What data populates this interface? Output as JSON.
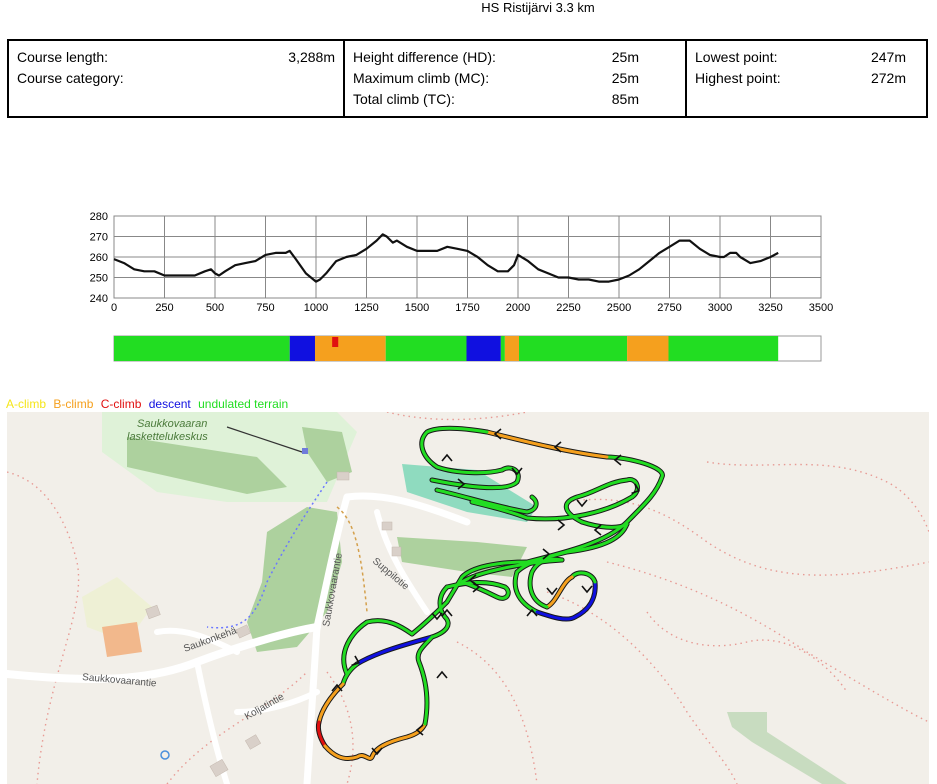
{
  "title": "HS Ristijärvi 3.3 km",
  "stats": {
    "course_length_label": "Course length:",
    "course_length_value": "3,288m",
    "course_category_label": "Course category:",
    "course_category_value": "",
    "height_diff_label": "Height difference (HD):",
    "height_diff_value": "25m",
    "max_climb_label": "Maximum climb (MC):",
    "max_climb_value": "25m",
    "total_climb_label": "Total climb (TC):",
    "total_climb_value": "85m",
    "lowest_label": "Lowest point:",
    "lowest_value": "247m",
    "highest_label": "Highest point:",
    "highest_value": "272m"
  },
  "legend": {
    "a_climb": "A-climb",
    "b_climb": "B-climb",
    "c_climb": "C-climb",
    "descent": "descent",
    "undulated": "undulated terrain"
  },
  "colors": {
    "a_climb": "#f5e61a",
    "b_climb": "#f5a01e",
    "c_climb": "#e01010",
    "descent": "#1010e0",
    "undulated": "#22dd22"
  },
  "chart_data": {
    "type": "line",
    "xlim": [
      0,
      3500
    ],
    "ylim": [
      240,
      280
    ],
    "x_ticks": [
      "0",
      "250",
      "500",
      "750",
      "1000",
      "1250",
      "1500",
      "1750",
      "2000",
      "2250",
      "2500",
      "2750",
      "3000",
      "3250",
      "3500"
    ],
    "y_ticks": [
      "240",
      "250",
      "260",
      "270",
      "280"
    ],
    "series": [
      {
        "x": [
          0,
          50,
          100,
          150,
          200,
          250,
          300,
          350,
          400,
          450,
          480,
          500,
          520,
          550,
          600,
          650,
          700,
          750,
          800,
          850,
          870,
          900,
          950,
          1000,
          1020,
          1050,
          1100,
          1150,
          1200,
          1250,
          1300,
          1330,
          1350,
          1380,
          1400,
          1450,
          1500,
          1550,
          1600,
          1650,
          1700,
          1750,
          1800,
          1850,
          1900,
          1950,
          1980,
          2000,
          2050,
          2100,
          2150,
          2200,
          2250,
          2300,
          2350,
          2400,
          2450,
          2500,
          2550,
          2600,
          2650,
          2700,
          2750,
          2800,
          2850,
          2900,
          2950,
          3000,
          3020,
          3050,
          3080,
          3100,
          3150,
          3200,
          3250,
          3288
        ],
        "y": [
          259,
          257,
          254,
          253,
          253,
          251,
          251,
          251,
          251,
          253,
          254,
          252,
          251,
          253,
          256,
          257,
          258,
          261,
          262,
          262,
          263,
          259,
          252,
          248,
          249,
          252,
          258,
          260,
          261,
          264,
          268,
          271,
          270,
          267,
          268,
          265,
          263,
          263,
          263,
          265,
          264,
          263,
          260,
          256,
          253,
          253,
          256,
          261,
          258,
          254,
          252,
          250,
          250,
          249,
          249,
          248,
          248,
          249,
          251,
          254,
          258,
          262,
          265,
          268,
          268,
          264,
          261,
          260,
          260,
          262,
          262,
          260,
          257,
          258,
          260,
          262
        ]
      }
    ],
    "bands": [
      {
        "kind": "undulated",
        "from": 0,
        "to": 870
      },
      {
        "kind": "descent",
        "from": 870,
        "to": 995
      },
      {
        "kind": "b_climb",
        "from": 995,
        "to": 1345
      },
      {
        "kind": "c_climb",
        "from": 1080,
        "to": 1110
      },
      {
        "kind": "undulated",
        "from": 1345,
        "to": 1745
      },
      {
        "kind": "descent",
        "from": 1745,
        "to": 1915
      },
      {
        "kind": "undulated",
        "from": 1915,
        "to": 1935
      },
      {
        "kind": "b_climb",
        "from": 1935,
        "to": 2005
      },
      {
        "kind": "undulated",
        "from": 2005,
        "to": 2540
      },
      {
        "kind": "b_climb",
        "from": 2540,
        "to": 2745
      },
      {
        "kind": "undulated",
        "from": 2745,
        "to": 3288
      }
    ]
  },
  "map": {
    "labels": {
      "ski_centre_1": "Saukkovaaran",
      "ski_centre_2": "laskettelukeskus",
      "suppilotie": "Suppilotie",
      "saukkovaarantie_v": "Saukkovaarantie",
      "saukonkeha": "Saukonkehä",
      "saukkovaarantie_h": "Saukkovaarantie",
      "koljatintie": "Koljatintie"
    }
  }
}
